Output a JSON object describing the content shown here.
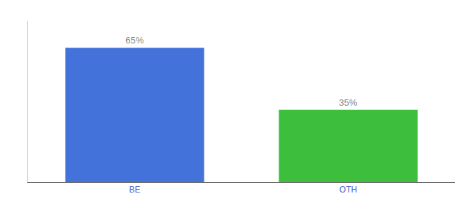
{
  "chart_data": {
    "type": "bar",
    "categories": [
      "BE",
      "OTH"
    ],
    "values": [
      65,
      35
    ],
    "value_labels": [
      "65%",
      "35%"
    ],
    "colors": [
      "#4472db",
      "#3dbe3d"
    ],
    "ylim": [
      0,
      78
    ],
    "data_labels": true,
    "tick_labels": "x",
    "grid": false
  }
}
